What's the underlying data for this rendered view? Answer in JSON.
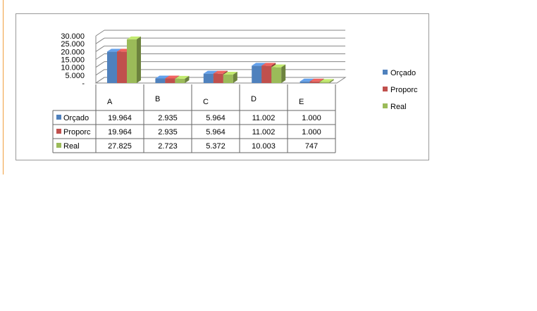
{
  "chart_data": {
    "type": "bar",
    "categories": [
      "A",
      "B",
      "C",
      "D",
      "E"
    ],
    "series": [
      {
        "name": "Orçado",
        "values": [
          19964,
          2935,
          5964,
          11002,
          1000
        ],
        "color": "#4f81bd"
      },
      {
        "name": "Proporc",
        "values": [
          19964,
          2935,
          5964,
          11002,
          1000
        ],
        "color": "#c0504d"
      },
      {
        "name": "Real",
        "values": [
          27825,
          2723,
          5372,
          10003,
          747
        ],
        "color": "#9bbb59"
      }
    ],
    "y_ticks": [
      "30.000",
      "25.000",
      "20.000",
      "15.000",
      "10.000",
      "5.000",
      "-"
    ],
    "ylim": [
      0,
      30000
    ],
    "legend_position": "right",
    "data_table": {
      "rows": [
        {
          "label": "Orçado",
          "cells": [
            "19.964",
            "2.935",
            "5.964",
            "11.002",
            "1.000"
          ]
        },
        {
          "label": "Proporc",
          "cells": [
            "19.964",
            "2.935",
            "5.964",
            "11.002",
            "1.000"
          ]
        },
        {
          "label": "Real",
          "cells": [
            "27.825",
            "2.723",
            "5.372",
            "10.003",
            "747"
          ]
        }
      ]
    }
  }
}
